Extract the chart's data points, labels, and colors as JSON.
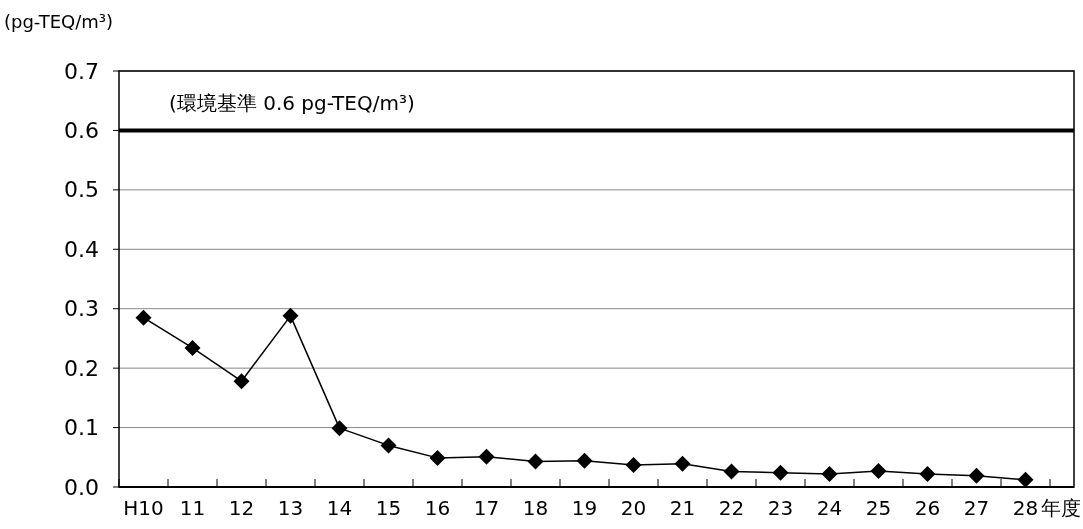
{
  "chart_data": {
    "type": "line",
    "ylabel": "(pg-TEQ/m³)",
    "xlabel": "年度",
    "categories": [
      "H10",
      "11",
      "12",
      "13",
      "14",
      "15",
      "16",
      "17",
      "18",
      "19",
      "20",
      "21",
      "22",
      "23",
      "24",
      "25",
      "26",
      "27",
      "28"
    ],
    "series": [
      {
        "color": "#000000",
        "values": [
          0.285,
          0.234,
          0.178,
          0.288,
          0.099,
          0.07,
          0.049,
          0.051,
          0.043,
          0.044,
          0.037,
          0.039,
          0.026,
          0.024,
          0.022,
          0.027,
          0.022,
          0.019,
          0.012
        ]
      }
    ],
    "ylim": [
      0,
      0.7
    ],
    "yticks": [
      {
        "value": 0,
        "label": "0.0"
      },
      {
        "value": 0.1,
        "label": "0.1"
      },
      {
        "value": 0.2,
        "label": "0.2"
      },
      {
        "value": 0.3,
        "label": "0.3"
      },
      {
        "value": 0.4,
        "label": "0.4"
      },
      {
        "value": 0.5,
        "label": "0.5"
      },
      {
        "value": 0.6,
        "label": "0.6"
      },
      {
        "value": 0.7,
        "label": "0.7"
      }
    ],
    "ref_lines": [
      {
        "axis": "y",
        "value": 0.6,
        "label": "(環境基準 0.6 pg-TEQ/m³)",
        "color": "#000000",
        "line_style": "solid"
      }
    ],
    "grid": "y",
    "marker": "diamond",
    "line_style": "solid"
  }
}
